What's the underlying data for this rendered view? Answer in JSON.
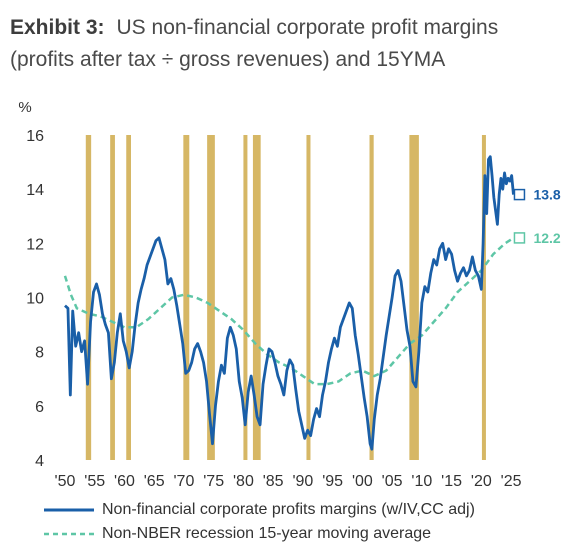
{
  "header": {
    "exhibit": "Exhibit 3:",
    "title": "US non-financial corporate profit margins",
    "subtitle": "(profits after tax ÷ gross revenues) and 15YMA"
  },
  "colors": {
    "margin_line": "#1a5fa8",
    "moving_avg": "#5ec6a6",
    "recession": "#d6b765",
    "axis_text": "#333333"
  },
  "chart_data": {
    "type": "line",
    "ylabel": "%",
    "ylim": [
      4,
      16
    ],
    "yticks": [
      4,
      6,
      8,
      10,
      12,
      14,
      16
    ],
    "xlim": [
      1949.5,
      2026.5
    ],
    "xticks": [
      {
        "value": 1950,
        "label": "'50"
      },
      {
        "value": 1955,
        "label": "'55"
      },
      {
        "value": 1960,
        "label": "'60"
      },
      {
        "value": 1965,
        "label": "'65"
      },
      {
        "value": 1970,
        "label": "'70"
      },
      {
        "value": 1975,
        "label": "'75"
      },
      {
        "value": 1980,
        "label": "'80"
      },
      {
        "value": 1985,
        "label": "'85"
      },
      {
        "value": 1990,
        "label": "'90"
      },
      {
        "value": 1995,
        "label": "'95"
      },
      {
        "value": 2000,
        "label": "'00"
      },
      {
        "value": 2005,
        "label": "'05"
      },
      {
        "value": 2010,
        "label": "'10"
      },
      {
        "value": 2015,
        "label": "'15"
      },
      {
        "value": 2020,
        "label": "'20"
      },
      {
        "value": 2025,
        "label": "'25"
      }
    ],
    "recessions": [
      [
        1953.5,
        1954.4
      ],
      [
        1957.6,
        1958.4
      ],
      [
        1960.3,
        1961.1
      ],
      [
        1969.9,
        1970.9
      ],
      [
        1973.9,
        1975.2
      ],
      [
        1980.0,
        1980.6
      ],
      [
        1981.6,
        1982.9
      ],
      [
        1990.6,
        1991.2
      ],
      [
        2001.2,
        2001.9
      ],
      [
        2007.9,
        2009.5
      ],
      [
        2020.1,
        2020.5
      ]
    ],
    "series": [
      {
        "name": "Non-financial corporate profits margins (w/IV,CC adj)",
        "style": "solid",
        "end_label": "13.8",
        "points": [
          [
            1950.0,
            9.7
          ],
          [
            1950.5,
            9.6
          ],
          [
            1950.9,
            6.4
          ],
          [
            1951.3,
            9.5
          ],
          [
            1951.8,
            8.2
          ],
          [
            1952.3,
            8.7
          ],
          [
            1952.8,
            8.0
          ],
          [
            1953.3,
            8.4
          ],
          [
            1953.8,
            6.8
          ],
          [
            1954.3,
            9.1
          ],
          [
            1954.8,
            10.2
          ],
          [
            1955.3,
            10.5
          ],
          [
            1955.8,
            10.1
          ],
          [
            1956.3,
            9.4
          ],
          [
            1956.8,
            9.0
          ],
          [
            1957.3,
            8.7
          ],
          [
            1957.8,
            7.0
          ],
          [
            1958.3,
            7.6
          ],
          [
            1958.8,
            8.7
          ],
          [
            1959.3,
            9.4
          ],
          [
            1959.8,
            8.4
          ],
          [
            1960.3,
            8.0
          ],
          [
            1960.8,
            7.4
          ],
          [
            1961.3,
            8.0
          ],
          [
            1961.8,
            9.0
          ],
          [
            1962.3,
            9.8
          ],
          [
            1962.8,
            10.3
          ],
          [
            1963.3,
            10.7
          ],
          [
            1963.8,
            11.2
          ],
          [
            1964.3,
            11.5
          ],
          [
            1964.8,
            11.8
          ],
          [
            1965.3,
            12.1
          ],
          [
            1965.8,
            12.2
          ],
          [
            1966.3,
            11.8
          ],
          [
            1966.8,
            11.4
          ],
          [
            1967.3,
            10.5
          ],
          [
            1967.8,
            10.7
          ],
          [
            1968.3,
            10.3
          ],
          [
            1968.8,
            9.7
          ],
          [
            1969.3,
            9.0
          ],
          [
            1969.8,
            8.3
          ],
          [
            1970.3,
            7.2
          ],
          [
            1970.8,
            7.3
          ],
          [
            1971.3,
            7.6
          ],
          [
            1971.8,
            8.1
          ],
          [
            1972.3,
            8.3
          ],
          [
            1972.8,
            8.0
          ],
          [
            1973.3,
            7.6
          ],
          [
            1973.8,
            6.9
          ],
          [
            1974.3,
            5.7
          ],
          [
            1974.8,
            4.6
          ],
          [
            1975.3,
            6.0
          ],
          [
            1975.8,
            6.9
          ],
          [
            1976.3,
            7.5
          ],
          [
            1976.8,
            7.2
          ],
          [
            1977.3,
            8.5
          ],
          [
            1977.8,
            8.9
          ],
          [
            1978.3,
            8.6
          ],
          [
            1978.8,
            8.1
          ],
          [
            1979.3,
            6.9
          ],
          [
            1979.8,
            6.3
          ],
          [
            1980.3,
            5.3
          ],
          [
            1980.8,
            6.5
          ],
          [
            1981.3,
            7.1
          ],
          [
            1981.8,
            6.4
          ],
          [
            1982.3,
            5.6
          ],
          [
            1982.8,
            5.3
          ],
          [
            1983.3,
            6.8
          ],
          [
            1983.8,
            7.5
          ],
          [
            1984.3,
            8.1
          ],
          [
            1984.8,
            8.0
          ],
          [
            1985.3,
            7.6
          ],
          [
            1985.8,
            7.1
          ],
          [
            1986.3,
            6.8
          ],
          [
            1986.8,
            6.4
          ],
          [
            1987.3,
            7.3
          ],
          [
            1987.8,
            7.7
          ],
          [
            1988.3,
            7.5
          ],
          [
            1988.8,
            6.6
          ],
          [
            1989.3,
            5.8
          ],
          [
            1989.8,
            5.3
          ],
          [
            1990.3,
            4.8
          ],
          [
            1990.8,
            5.1
          ],
          [
            1991.3,
            4.9
          ],
          [
            1991.8,
            5.5
          ],
          [
            1992.3,
            5.9
          ],
          [
            1992.8,
            5.6
          ],
          [
            1993.3,
            6.4
          ],
          [
            1993.8,
            6.9
          ],
          [
            1994.3,
            7.6
          ],
          [
            1994.8,
            8.1
          ],
          [
            1995.3,
            8.5
          ],
          [
            1995.8,
            8.2
          ],
          [
            1996.3,
            8.9
          ],
          [
            1996.8,
            9.2
          ],
          [
            1997.3,
            9.5
          ],
          [
            1997.8,
            9.8
          ],
          [
            1998.3,
            9.6
          ],
          [
            1998.8,
            8.6
          ],
          [
            1999.3,
            7.9
          ],
          [
            1999.8,
            7.1
          ],
          [
            2000.3,
            6.3
          ],
          [
            2000.8,
            5.6
          ],
          [
            2001.3,
            4.6
          ],
          [
            2001.6,
            4.4
          ],
          [
            2002.0,
            5.5
          ],
          [
            2002.5,
            6.4
          ],
          [
            2003.0,
            7.0
          ],
          [
            2003.5,
            7.8
          ],
          [
            2004.0,
            8.6
          ],
          [
            2004.5,
            9.3
          ],
          [
            2005.0,
            10.0
          ],
          [
            2005.5,
            10.8
          ],
          [
            2006.0,
            11.0
          ],
          [
            2006.5,
            10.6
          ],
          [
            2007.0,
            9.7
          ],
          [
            2007.5,
            8.8
          ],
          [
            2008.0,
            8.2
          ],
          [
            2008.5,
            6.9
          ],
          [
            2009.0,
            6.7
          ],
          [
            2009.5,
            8.0
          ],
          [
            2010.0,
            9.8
          ],
          [
            2010.5,
            10.4
          ],
          [
            2011.0,
            10.2
          ],
          [
            2011.5,
            10.9
          ],
          [
            2012.0,
            11.4
          ],
          [
            2012.5,
            11.2
          ],
          [
            2013.0,
            11.8
          ],
          [
            2013.5,
            12.0
          ],
          [
            2014.0,
            11.4
          ],
          [
            2014.5,
            11.8
          ],
          [
            2015.0,
            11.6
          ],
          [
            2015.5,
            11.0
          ],
          [
            2016.0,
            10.6
          ],
          [
            2016.5,
            10.9
          ],
          [
            2017.0,
            11.1
          ],
          [
            2017.5,
            10.8
          ],
          [
            2018.0,
            11.0
          ],
          [
            2018.5,
            11.5
          ],
          [
            2019.0,
            11.0
          ],
          [
            2019.5,
            10.8
          ],
          [
            2020.0,
            10.3
          ],
          [
            2020.3,
            12.0
          ],
          [
            2020.6,
            14.5
          ],
          [
            2020.9,
            13.1
          ],
          [
            2021.2,
            15.1
          ],
          [
            2021.5,
            15.2
          ],
          [
            2021.8,
            14.5
          ],
          [
            2022.1,
            13.7
          ],
          [
            2022.4,
            13.2
          ],
          [
            2022.7,
            12.7
          ],
          [
            2023.0,
            13.8
          ],
          [
            2023.3,
            14.4
          ],
          [
            2023.6,
            14.0
          ],
          [
            2023.9,
            14.6
          ],
          [
            2024.2,
            14.2
          ],
          [
            2024.5,
            14.4
          ],
          [
            2024.8,
            14.3
          ],
          [
            2025.1,
            14.5
          ],
          [
            2025.4,
            13.8
          ]
        ]
      },
      {
        "name": "Non-NBER recession 15-year moving average",
        "style": "dashed",
        "end_label": "12.2",
        "points": [
          [
            1950.0,
            10.8
          ],
          [
            1951.0,
            10.1
          ],
          [
            1952.0,
            9.6
          ],
          [
            1954.0,
            9.4
          ],
          [
            1956.0,
            9.3
          ],
          [
            1958.0,
            9.1
          ],
          [
            1960.0,
            8.9
          ],
          [
            1962.0,
            8.9
          ],
          [
            1964.0,
            9.2
          ],
          [
            1966.0,
            9.6
          ],
          [
            1968.0,
            10.0
          ],
          [
            1970.0,
            10.1
          ],
          [
            1972.0,
            10.0
          ],
          [
            1974.0,
            9.8
          ],
          [
            1976.0,
            9.5
          ],
          [
            1978.0,
            9.2
          ],
          [
            1980.0,
            8.8
          ],
          [
            1982.0,
            8.3
          ],
          [
            1984.0,
            7.9
          ],
          [
            1986.0,
            7.6
          ],
          [
            1988.0,
            7.4
          ],
          [
            1990.0,
            7.1
          ],
          [
            1992.0,
            6.8
          ],
          [
            1994.0,
            6.8
          ],
          [
            1996.0,
            6.9
          ],
          [
            1998.0,
            7.2
          ],
          [
            2000.0,
            7.3
          ],
          [
            2002.0,
            7.1
          ],
          [
            2004.0,
            7.3
          ],
          [
            2006.0,
            7.8
          ],
          [
            2008.0,
            8.3
          ],
          [
            2010.0,
            8.6
          ],
          [
            2012.0,
            9.1
          ],
          [
            2014.0,
            9.6
          ],
          [
            2016.0,
            10.2
          ],
          [
            2018.0,
            10.6
          ],
          [
            2020.0,
            11.0
          ],
          [
            2022.0,
            11.6
          ],
          [
            2024.0,
            12.0
          ],
          [
            2025.4,
            12.2
          ]
        ]
      }
    ]
  }
}
